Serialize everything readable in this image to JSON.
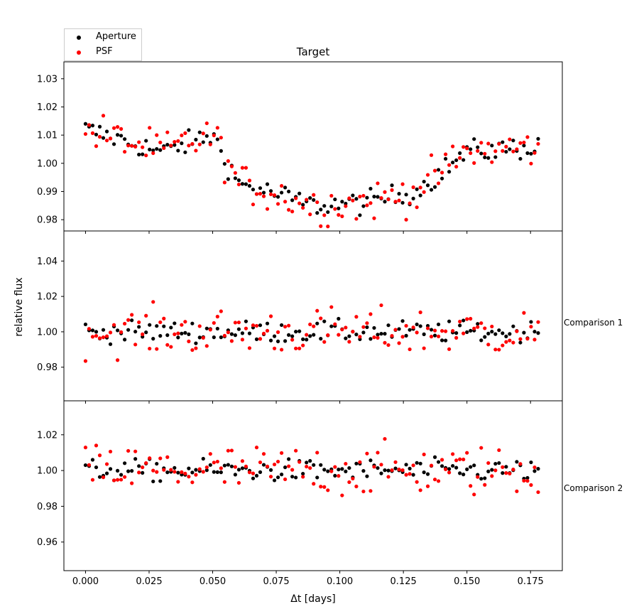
{
  "chart_data": {
    "type": "scatter",
    "title": "Target",
    "xlabel": "Δt [days]",
    "ylabel": "relative flux",
    "xlim": [
      -0.0085,
      0.1875
    ],
    "xticks": [
      0.0,
      0.025,
      0.05,
      0.075,
      0.1,
      0.125,
      0.15,
      0.175
    ],
    "xtick_labels": [
      "0.000",
      "0.025",
      "0.050",
      "0.075",
      "0.100",
      "0.125",
      "0.150",
      "0.175"
    ],
    "legend": {
      "position": "upper-left",
      "entries": [
        {
          "name": "Aperture",
          "color": "#000000"
        },
        {
          "name": "PSF",
          "color": "#ff0000"
        }
      ]
    },
    "series_names": [
      "Aperture",
      "PSF"
    ],
    "series_colors": [
      "#000000",
      "#ff0000"
    ],
    "panels": [
      {
        "name": "Target",
        "label": "",
        "ylim": [
          0.976,
          1.036
        ],
        "yticks": [
          0.98,
          0.99,
          1.0,
          1.01,
          1.02,
          1.03
        ],
        "ytick_labels": [
          "0.98",
          "0.99",
          "1.00",
          "1.01",
          "1.02",
          "1.03"
        ],
        "description": "Flux near 1.005-1.015 early, dips to ~0.985 around 0.09-0.11 days, recovers to ~1.005 by the end.",
        "segments": [
          [
            0.0,
            1.012
          ],
          [
            0.03,
            1.004
          ],
          [
            0.05,
            1.01
          ],
          [
            0.06,
            0.993
          ],
          [
            0.09,
            0.985
          ],
          [
            0.11,
            0.986
          ],
          [
            0.13,
            0.99
          ],
          [
            0.15,
            1.004
          ],
          [
            0.178,
            1.006
          ]
        ],
        "noise": [
          0.004,
          0.007
        ],
        "series": [
          {
            "name": "Aperture",
            "x": [],
            "y": []
          },
          {
            "name": "PSF",
            "x": [],
            "y": []
          }
        ]
      },
      {
        "name": "Comparison 1",
        "label": "Comparison 1",
        "ylim": [
          0.961,
          1.057
        ],
        "yticks": [
          0.98,
          1.0,
          1.02,
          1.04
        ],
        "ytick_labels": [
          "0.98",
          "1.00",
          "1.02",
          "1.04"
        ],
        "description": "Flat near 1.000 with scatter of ~0.005 (Aperture) and ~0.01 (PSF).",
        "segments": [
          [
            0.0,
            1.0
          ],
          [
            0.178,
            1.0
          ]
        ],
        "noise": [
          0.006,
          0.013
        ],
        "series": [
          {
            "name": "Aperture",
            "x": [],
            "y": []
          },
          {
            "name": "PSF",
            "x": [],
            "y": []
          }
        ]
      },
      {
        "name": "Comparison 2",
        "label": "Comparison 2",
        "ylim": [
          0.944,
          1.039
        ],
        "yticks": [
          0.96,
          0.98,
          1.0,
          1.02
        ],
        "ytick_labels": [
          "0.96",
          "0.98",
          "1.00",
          "1.02"
        ],
        "description": "Flat near 1.000 with scatter of ~0.006 (Aperture) and ~0.012 (PSF).",
        "segments": [
          [
            0.0,
            1.0
          ],
          [
            0.178,
            1.0
          ]
        ],
        "noise": [
          0.006,
          0.014
        ],
        "series": [
          {
            "name": "Aperture",
            "x": [],
            "y": []
          },
          {
            "name": "PSF",
            "x": [],
            "y": []
          }
        ]
      }
    ]
  }
}
